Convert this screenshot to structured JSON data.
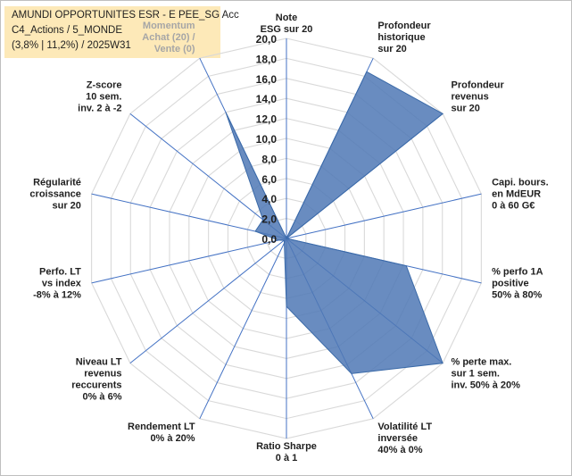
{
  "title": {
    "line1": "AMUNDI OPPORTUNITES ESR - E PEE_SG Acc",
    "line2": "C4_Actions / 5_MONDE",
    "line3": "(3,8% | 11,2%) / 2025W31"
  },
  "colors": {
    "fill": "#4f78b5",
    "stroke": "#3b6aa8",
    "axis": "#4472c4",
    "grid": "#d9d9d9",
    "title_bg": "#fde9b8"
  },
  "chart_data": {
    "type": "radar",
    "title": "",
    "rlim": [
      0,
      20
    ],
    "tick_labels": [
      "0,0",
      "2,0",
      "4,0",
      "6,0",
      "8,0",
      "10,0",
      "12,0",
      "14,0",
      "16,0",
      "18,0",
      "20,0"
    ],
    "grid": true,
    "axes": [
      {
        "label": [
          "Note",
          "ESG sur 20"
        ],
        "value": 0
      },
      {
        "label": [
          "Profondeur",
          "historique",
          "sur 20"
        ],
        "value": 18.5
      },
      {
        "label": [
          "Profondeur",
          "revenus",
          "sur 20"
        ],
        "value": 20
      },
      {
        "label": [
          "Capi. bours.",
          "en MdEUR",
          "0 à 60 G€"
        ],
        "value": 0
      },
      {
        "label": [
          "% perfo 1A",
          "positive",
          "50% à 80%"
        ],
        "value": 12.3
      },
      {
        "label": [
          "% perte max.",
          "sur 1 sem.",
          "inv. 50% à 20%"
        ],
        "value": 20
      },
      {
        "label": [
          "Volatilité LT",
          "inversée",
          "40% à 0%"
        ],
        "value": 15
      },
      {
        "label": [
          "Ratio Sharpe",
          "0 à 1"
        ],
        "value": 6.8
      },
      {
        "label": [
          "Rendement LT",
          "0% à 20%"
        ],
        "value": 0.5
      },
      {
        "label": [
          "Niveau LT",
          "revenus",
          "reccurents",
          "0% à 6%"
        ],
        "value": 0.3
      },
      {
        "label": [
          "Perfo. LT",
          "vs index",
          "-8% à 12%"
        ],
        "value": 0.8
      },
      {
        "label": [
          "Régularité",
          "croissance",
          "sur 20"
        ],
        "value": 3.2
      },
      {
        "label": [
          "Z-score",
          "10 sem.",
          "inv. 2 à -2"
        ],
        "value": 3.0
      },
      {
        "label": [
          "Momentum",
          "Achat (20) /",
          "Vente (0)"
        ],
        "value": 14.0
      }
    ]
  }
}
